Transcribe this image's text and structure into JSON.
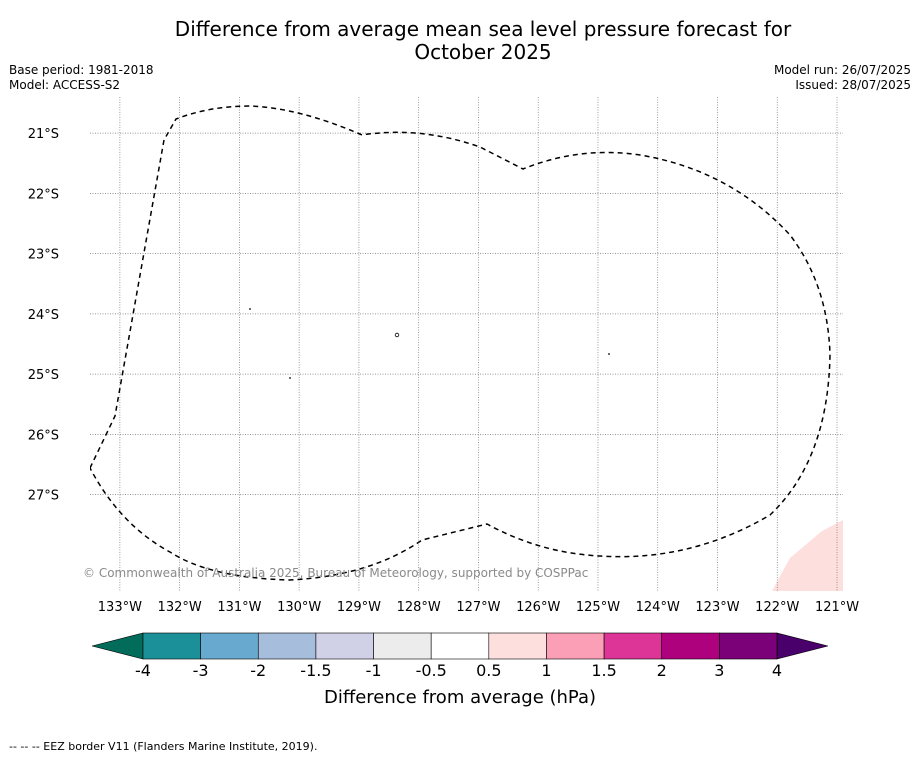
{
  "title_line1": "Difference from average mean sea level pressure forecast for",
  "title_line2": "October 2025",
  "base_period": "Base period: 1981-2018",
  "model": "Model: ACCESS-S2",
  "model_run": "Model run: 26/07/2025",
  "issued": "Issued: 28/07/2025",
  "copyright": "© Commonwealth of Australia 2025, Bureau of Meteorology, supported by COSPPac",
  "map": {
    "lon_range": [
      -133.5,
      -120.9
    ],
    "lat_range": [
      -28.6,
      -20.4
    ],
    "lon_ticks": [
      "133°W",
      "132°W",
      "131°W",
      "130°W",
      "129°W",
      "128°W",
      "127°W",
      "126°W",
      "125°W",
      "124°W",
      "123°W",
      "122°W",
      "121°W"
    ],
    "lat_ticks": [
      "21°S",
      "22°S",
      "23°S",
      "24°S",
      "25°S",
      "26°S",
      "27°S"
    ],
    "gridlines": true,
    "anomaly_fill_color": "#fde0dd",
    "eez_border_color": "#000000"
  },
  "colorbar": {
    "label": "Difference from average (hPa)",
    "tick_labels": [
      "-4",
      "-3",
      "-2",
      "-1.5",
      "-1",
      "-0.5",
      "0.5",
      "1",
      "1.5",
      "2",
      "3",
      "4"
    ],
    "under_color": "#016c59",
    "over_color": "#49006a",
    "colors": [
      "#1c9099",
      "#67a9cf",
      "#a6bddb",
      "#d0d1e6",
      "#ececec",
      "#ffffff",
      "#fde0dd",
      "#fa9fb5",
      "#dd3497",
      "#ae017e",
      "#7a0177"
    ]
  },
  "footnote": "--  --  -- EEZ border V11 (Flanders Marine Institute, 2019)."
}
